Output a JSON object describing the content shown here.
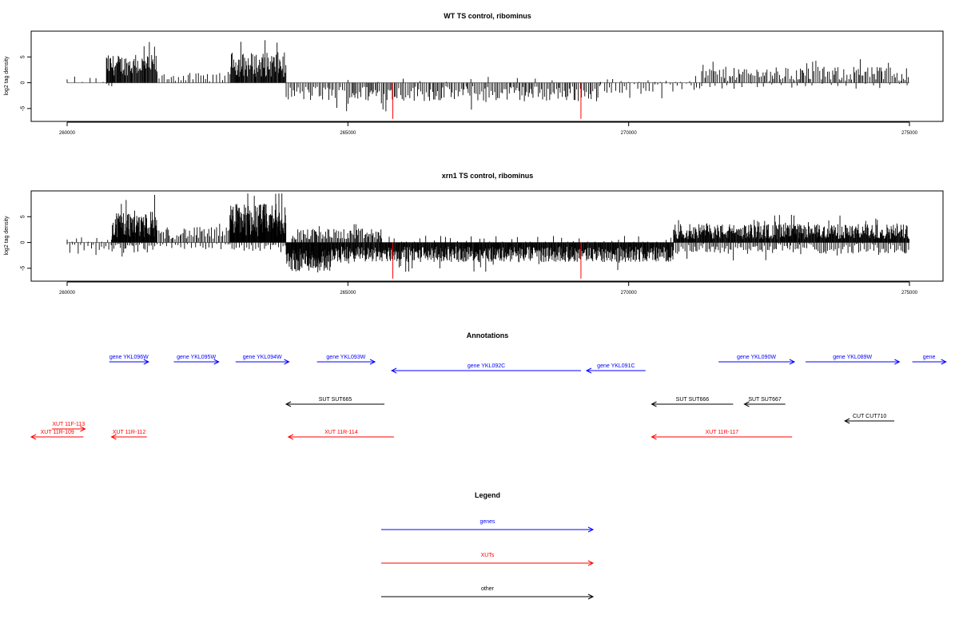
{
  "colors": {
    "genes": "#0000ff",
    "XUTs": "#ff0000",
    "other": "#000000",
    "axis": "#000000",
    "baseline": "#808080",
    "marker": "#ff0000"
  },
  "chart_data": [
    {
      "type": "bar",
      "title": "WT TS control, ribominus",
      "ylabel": "log2 tag density",
      "xlim": [
        259400,
        275600
      ],
      "ylim": [
        -7.5,
        10
      ],
      "xticks": [
        260000,
        265000,
        270000,
        275000
      ],
      "yticks": [
        -5,
        0,
        5
      ],
      "xtick_labels": [
        "260000",
        "265000",
        "270000",
        "275000"
      ],
      "ytick_labels": [
        "-5",
        "0",
        "5"
      ],
      "x_range": [
        260000,
        275000
      ],
      "markers": [
        265800,
        269150
      ],
      "marker_depth": -7,
      "segments": [
        {
          "from": 260000,
          "to": 260700,
          "mean": 0.4,
          "amp": 0.8,
          "step": 120,
          "sign": 1
        },
        {
          "from": 260700,
          "to": 260800,
          "mean": -0.5,
          "amp": 0.4,
          "step": 60,
          "sign": -1
        },
        {
          "from": 260700,
          "to": 261600,
          "mean": 3.4,
          "amp": 2.0,
          "step": 12,
          "sign": 1
        },
        {
          "from": 261600,
          "to": 262900,
          "mean": 1.1,
          "amp": 0.8,
          "step": 45,
          "sign": 1
        },
        {
          "from": 262900,
          "to": 263900,
          "mean": 3.5,
          "amp": 2.4,
          "step": 12,
          "sign": 1
        },
        {
          "from": 263900,
          "to": 269500,
          "mean": -2.1,
          "amp": 1.5,
          "step": 28,
          "sign": -1
        },
        {
          "from": 265000,
          "to": 268800,
          "mean": 0.4,
          "amp": 0.6,
          "step": 400,
          "sign": 1
        },
        {
          "from": 269500,
          "to": 271300,
          "mean": -1.0,
          "amp": 1.0,
          "step": 60,
          "sign": -1
        },
        {
          "from": 269500,
          "to": 271300,
          "mean": 0.5,
          "amp": 0.8,
          "step": 140,
          "sign": 1
        },
        {
          "from": 271300,
          "to": 275000,
          "mean": 1.7,
          "amp": 1.4,
          "step": 28,
          "sign": 1
        },
        {
          "from": 271300,
          "to": 275000,
          "mean": -0.6,
          "amp": 0.6,
          "step": 140,
          "sign": -1
        }
      ]
    },
    {
      "type": "bar",
      "title": "xrn1 TS control, ribominus",
      "ylabel": "log2 tag density",
      "xlim": [
        259400,
        275600
      ],
      "ylim": [
        -7.5,
        10
      ],
      "xticks": [
        260000,
        265000,
        270000,
        275000
      ],
      "yticks": [
        -5,
        0,
        5
      ],
      "xtick_labels": [
        "260000",
        "265000",
        "270000",
        "275000"
      ],
      "ytick_labels": [
        "-5",
        "0",
        "5"
      ],
      "x_range": [
        260000,
        275000
      ],
      "markers": [
        265800,
        269150
      ],
      "marker_depth": -7,
      "segments": [
        {
          "from": 260000,
          "to": 260800,
          "mean": -1.2,
          "amp": 1.0,
          "step": 50,
          "sign": -1
        },
        {
          "from": 260000,
          "to": 260800,
          "mean": 0.4,
          "amp": 0.6,
          "step": 110,
          "sign": 1
        },
        {
          "from": 260800,
          "to": 261600,
          "mean": 3.6,
          "amp": 2.6,
          "step": 8,
          "sign": 1
        },
        {
          "from": 260800,
          "to": 261600,
          "mean": -1.1,
          "amp": 1.0,
          "step": 30,
          "sign": -1
        },
        {
          "from": 261600,
          "to": 262900,
          "mean": 1.8,
          "amp": 1.2,
          "step": 25,
          "sign": 1
        },
        {
          "from": 261600,
          "to": 262900,
          "mean": -0.8,
          "amp": 0.6,
          "step": 70,
          "sign": -1
        },
        {
          "from": 262900,
          "to": 263900,
          "mean": 4.4,
          "amp": 3.2,
          "step": 8,
          "sign": 1
        },
        {
          "from": 262900,
          "to": 263900,
          "mean": -1.0,
          "amp": 0.9,
          "step": 40,
          "sign": -1
        },
        {
          "from": 263900,
          "to": 264700,
          "mean": -3.4,
          "amp": 2.2,
          "step": 8,
          "sign": -1
        },
        {
          "from": 264000,
          "to": 265600,
          "mean": 1.6,
          "amp": 1.1,
          "step": 20,
          "sign": 1
        },
        {
          "from": 264700,
          "to": 270800,
          "mean": -2.3,
          "amp": 1.5,
          "step": 10,
          "sign": -1
        },
        {
          "from": 265600,
          "to": 270800,
          "mean": 0.5,
          "amp": 0.8,
          "step": 120,
          "sign": 1
        },
        {
          "from": 270800,
          "to": 275000,
          "mean": 2.1,
          "amp": 1.5,
          "step": 10,
          "sign": 1
        },
        {
          "from": 270800,
          "to": 275000,
          "mean": -1.2,
          "amp": 1.0,
          "step": 30,
          "sign": -1
        }
      ]
    }
  ],
  "annotations": {
    "title": "Annotations",
    "features": [
      {
        "label": "gene YKL096W",
        "kind": "genes",
        "start": 260750,
        "end": 261450,
        "strand": "+",
        "row": 0
      },
      {
        "label": "gene YKL095W",
        "kind": "genes",
        "start": 261900,
        "end": 262700,
        "strand": "+",
        "row": 0
      },
      {
        "label": "gene YKL094W",
        "kind": "genes",
        "start": 263000,
        "end": 263950,
        "strand": "+",
        "row": 0
      },
      {
        "label": "gene YKL093W",
        "kind": "genes",
        "start": 264450,
        "end": 265480,
        "strand": "+",
        "row": 0
      },
      {
        "label": "gene YKL092C",
        "kind": "genes",
        "start": 265780,
        "end": 269150,
        "strand": "-",
        "row": 1
      },
      {
        "label": "gene YKL091C",
        "kind": "genes",
        "start": 269250,
        "end": 270300,
        "strand": "-",
        "row": 1
      },
      {
        "label": "gene YKL090W",
        "kind": "genes",
        "start": 271600,
        "end": 272950,
        "strand": "+",
        "row": 0
      },
      {
        "label": "gene YKL089W",
        "kind": "genes",
        "start": 273150,
        "end": 274820,
        "strand": "+",
        "row": 0
      },
      {
        "label": "gene",
        "kind": "genes",
        "start": 275050,
        "end": 275650,
        "strand": "+",
        "row": 0
      },
      {
        "label": "SUT SUT665",
        "kind": "other",
        "start": 263900,
        "end": 265650,
        "strand": "-",
        "row": 2
      },
      {
        "label": "SUT SUT666",
        "kind": "other",
        "start": 270410,
        "end": 271860,
        "strand": "-",
        "row": 2
      },
      {
        "label": "SUT SUT667",
        "kind": "other",
        "start": 272060,
        "end": 272790,
        "strand": "-",
        "row": 2
      },
      {
        "label": "CUT CUT710",
        "kind": "other",
        "start": 273850,
        "end": 274730,
        "strand": "-",
        "row": 3
      },
      {
        "label": "XUT 11R-109",
        "kind": "XUTs",
        "start": 259360,
        "end": 260290,
        "strand": "-",
        "row": 5
      },
      {
        "label": "XUT 11F-113",
        "kind": "XUTs",
        "start": 259730,
        "end": 260320,
        "strand": "+",
        "row": 4
      },
      {
        "label": "XUT 11R-112",
        "kind": "XUTs",
        "start": 260790,
        "end": 261420,
        "strand": "-",
        "row": 5
      },
      {
        "label": "XUT 11R-114",
        "kind": "XUTs",
        "start": 263940,
        "end": 265820,
        "strand": "-",
        "row": 5
      },
      {
        "label": "XUT 11R-117",
        "kind": "XUTs",
        "start": 270410,
        "end": 272910,
        "strand": "-",
        "row": 5
      }
    ]
  },
  "legend": {
    "title": "Legend",
    "items": [
      {
        "label": "genes",
        "kind": "genes"
      },
      {
        "label": "XUTs",
        "kind": "XUTs"
      },
      {
        "label": "other",
        "kind": "other"
      }
    ]
  }
}
